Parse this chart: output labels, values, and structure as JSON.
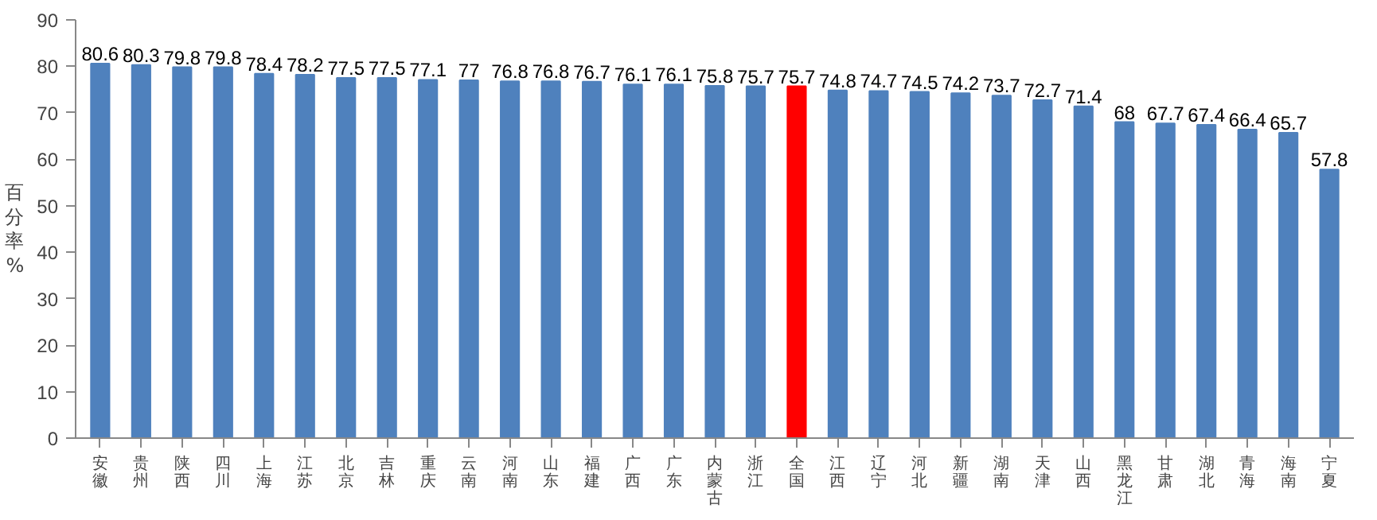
{
  "chart_data": {
    "type": "bar",
    "ylabel": "百分率%",
    "categories": [
      "安徽",
      "贵州",
      "陕西",
      "四川",
      "上海",
      "江苏",
      "北京",
      "吉林",
      "重庆",
      "云南",
      "河南",
      "山东",
      "福建",
      "广西",
      "广东",
      "内蒙古",
      "浙江",
      "全国",
      "江西",
      "辽宁",
      "河北",
      "新疆",
      "湖南",
      "天津",
      "山西",
      "黑龙江",
      "甘肃",
      "湖北",
      "青海",
      "海南",
      "宁夏"
    ],
    "values": [
      80.6,
      80.3,
      79.8,
      79.8,
      78.4,
      78.2,
      77.5,
      77.5,
      77.1,
      77,
      76.8,
      76.8,
      76.7,
      76.1,
      76.1,
      75.8,
      75.7,
      75.7,
      74.8,
      74.7,
      74.5,
      74.2,
      73.7,
      72.7,
      71.4,
      68,
      67.7,
      67.4,
      66.4,
      65.7,
      57.8
    ],
    "colors": [
      "#4f81bd",
      "#4f81bd",
      "#4f81bd",
      "#4f81bd",
      "#4f81bd",
      "#4f81bd",
      "#4f81bd",
      "#4f81bd",
      "#4f81bd",
      "#4f81bd",
      "#4f81bd",
      "#4f81bd",
      "#4f81bd",
      "#4f81bd",
      "#4f81bd",
      "#4f81bd",
      "#4f81bd",
      "#ff0000",
      "#4f81bd",
      "#4f81bd",
      "#4f81bd",
      "#4f81bd",
      "#4f81bd",
      "#4f81bd",
      "#4f81bd",
      "#4f81bd",
      "#4f81bd",
      "#4f81bd",
      "#4f81bd",
      "#4f81bd",
      "#4f81bd"
    ],
    "ylim": [
      0,
      90
    ],
    "yticks": [
      0,
      10,
      20,
      30,
      40,
      50,
      60,
      70,
      80,
      90
    ],
    "grid": false,
    "data_labels": true
  }
}
